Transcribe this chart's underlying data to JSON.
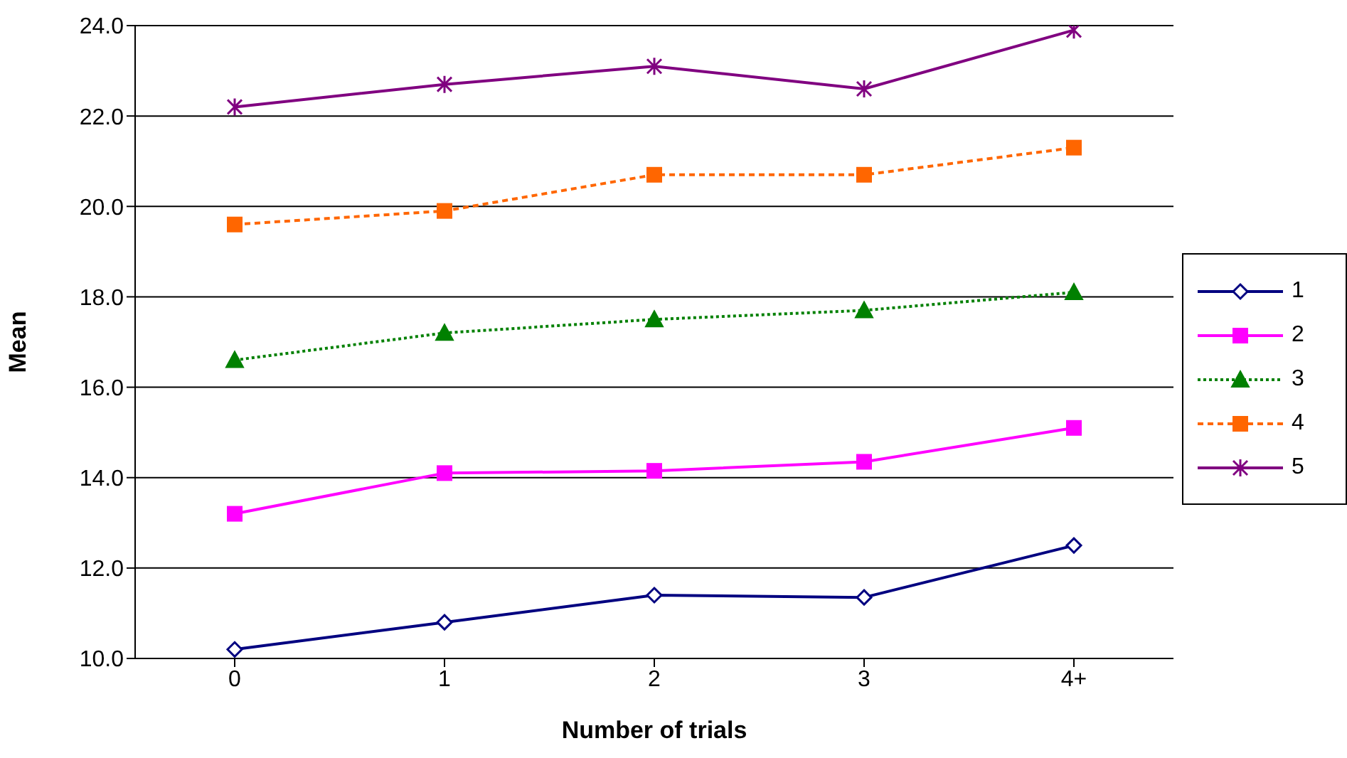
{
  "chart_data": {
    "type": "line",
    "xlabel": "Number of trials",
    "ylabel": "Mean",
    "categories": [
      "0",
      "1",
      "2",
      "3",
      "4+"
    ],
    "series": [
      {
        "name": "1",
        "color": "#000080",
        "values": [
          10.2,
          10.8,
          11.4,
          11.35,
          12.5
        ],
        "marker": "diamond",
        "line_style": "solid"
      },
      {
        "name": "2",
        "color": "#ff00ff",
        "values": [
          13.2,
          14.1,
          14.15,
          14.35,
          15.1
        ],
        "marker": "square",
        "line_style": "solid"
      },
      {
        "name": "3",
        "color": "#008000",
        "values": [
          16.6,
          17.2,
          17.5,
          17.7,
          18.1
        ],
        "marker": "triangle",
        "line_style": "dotted"
      },
      {
        "name": "4",
        "color": "#ff6600",
        "values": [
          19.6,
          19.9,
          20.7,
          20.7,
          21.3
        ],
        "marker": "square",
        "line_style": "dashed"
      },
      {
        "name": "5",
        "color": "#800080",
        "values": [
          22.2,
          22.7,
          23.1,
          22.6,
          23.9
        ],
        "marker": "cross",
        "line_style": "solid"
      }
    ],
    "ylim": [
      10,
      24
    ],
    "yticks": [
      {
        "value": 10,
        "label": "10.0"
      },
      {
        "value": 12,
        "label": "12.0"
      },
      {
        "value": 14,
        "label": "14.0"
      },
      {
        "value": 16,
        "label": "16.0"
      },
      {
        "value": 18,
        "label": "18.0"
      },
      {
        "value": 20,
        "label": "20.0"
      },
      {
        "value": 22,
        "label": "22.0"
      },
      {
        "value": 24,
        "label": "24.0"
      }
    ],
    "grid": "y",
    "legend": "right"
  }
}
